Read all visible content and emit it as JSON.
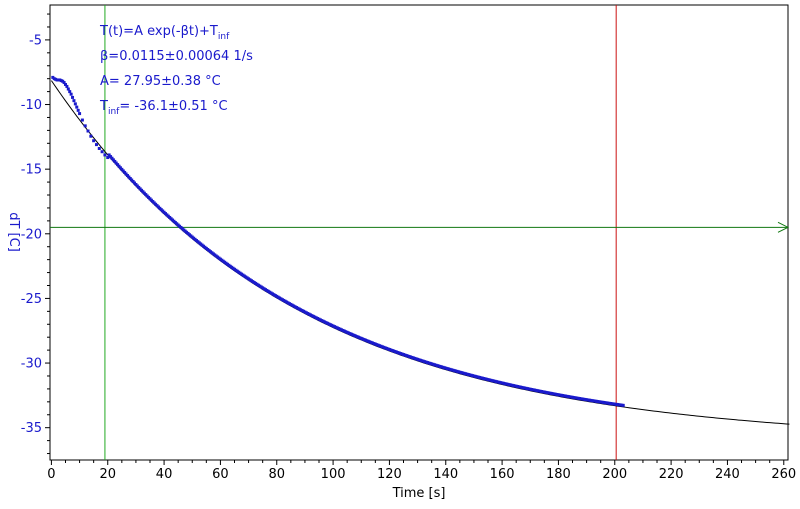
{
  "colors": {
    "data": "#1a1acc",
    "fit": "#000000",
    "green": "#22aa22",
    "baseline": "#117711",
    "red": "#cc1111",
    "axis": "#000000",
    "label_blue": "#1a1acc"
  },
  "chart_data": {
    "type": "scatter",
    "title": "",
    "xlabel": "Time [s]",
    "ylabel": "dT [C]",
    "xlim": [
      -0.5,
      261.5
    ],
    "ylim": [
      -37.5,
      -2.3
    ],
    "x_ticks": [
      0,
      20,
      40,
      60,
      80,
      100,
      120,
      140,
      160,
      180,
      200,
      220,
      240,
      260
    ],
    "x_tick_labels": [
      "0",
      "20",
      "40",
      "60",
      "80",
      "100",
      "120",
      "140",
      "160",
      "180",
      "200",
      "220",
      "240",
      "260"
    ],
    "y_ticks": [
      -5,
      -10,
      -15,
      -20,
      -25,
      -30,
      -35
    ],
    "y_tick_labels": [
      "-5",
      "-10",
      "-15",
      "-20",
      "-25",
      "-30",
      "-35"
    ],
    "grid": false,
    "legend": "none",
    "annotations": [
      {
        "main": "T(t)=A exp(-βt)+T",
        "sub": "inf",
        "tail": ""
      },
      {
        "main": "β=0.0115±0.00064 1/s",
        "sub": "",
        "tail": ""
      },
      {
        "main": "A= 27.95±0.38 °C",
        "sub": "",
        "tail": ""
      },
      {
        "main": "T",
        "sub": "inf",
        "tail": "= -36.1±0.51 °C"
      }
    ],
    "fit": {
      "label": "T(t)=A exp(-βt)+Tinf",
      "A": 27.95,
      "beta": 0.0115,
      "T_inf": -36.1,
      "x_range": [
        0,
        262
      ]
    },
    "series": [
      {
        "kind": "measured",
        "x_step": 0.5,
        "x": [
          0.5,
          1,
          1.5,
          2,
          2.5,
          3,
          3.5,
          4,
          4.5,
          5,
          5.5,
          6,
          6.5,
          7,
          7.5,
          8,
          8.5,
          9,
          9.5,
          10,
          11,
          12,
          13,
          14,
          15,
          16,
          17,
          18,
          19,
          20
        ],
        "y": [
          -7.9,
          -8.0,
          -8.05,
          -8.1,
          -8.1,
          -8.1,
          -8.15,
          -8.2,
          -8.3,
          -8.45,
          -8.6,
          -8.8,
          -9.0,
          -9.2,
          -9.45,
          -9.7,
          -9.95,
          -10.2,
          -10.45,
          -10.7,
          -11.2,
          -11.65,
          -12.05,
          -12.45,
          -12.8,
          -13.1,
          -13.4,
          -13.65,
          -13.9,
          -14.1
        ],
        "x_fit_from": 20.5,
        "x_fit_to": 203
      }
    ],
    "vlines": [
      {
        "x": 19,
        "color_key": "green"
      },
      {
        "x": 200.5,
        "color_key": "red"
      }
    ],
    "hline": {
      "y": -19.5,
      "color_key": "baseline"
    }
  }
}
